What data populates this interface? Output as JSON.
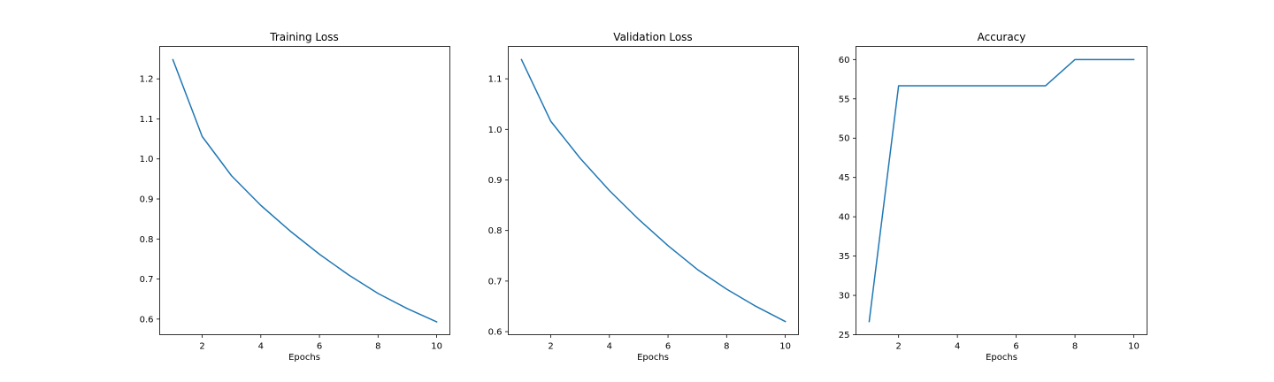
{
  "chart_data": [
    {
      "type": "line",
      "title": "Training Loss",
      "xlabel": "Epochs",
      "ylabel": "",
      "x": [
        1,
        2,
        3,
        4,
        5,
        6,
        7,
        8,
        9,
        10
      ],
      "series": [
        {
          "values": [
            1.248,
            1.056,
            0.958,
            0.884,
            0.82,
            0.762,
            0.71,
            0.664,
            0.626,
            0.593
          ]
        }
      ],
      "xlim": [
        0.55,
        10.45
      ],
      "ylim": [
        0.561,
        1.281
      ],
      "xticks": [
        2,
        4,
        6,
        8,
        10
      ],
      "yticks": [
        0.6,
        0.7,
        0.8,
        0.9,
        1.0,
        1.1,
        1.2
      ],
      "xtick_labels": [
        "2",
        "4",
        "6",
        "8",
        "10"
      ],
      "ytick_labels": [
        "0.6",
        "0.7",
        "0.8",
        "0.9",
        "1.0",
        "1.1",
        "1.2"
      ],
      "color": "#1f77b4",
      "grid": false
    },
    {
      "type": "line",
      "title": "Validation Loss",
      "xlabel": "Epochs",
      "ylabel": "",
      "x": [
        1,
        2,
        3,
        4,
        5,
        6,
        7,
        8,
        9,
        10
      ],
      "series": [
        {
          "values": [
            1.138,
            1.016,
            0.943,
            0.879,
            0.822,
            0.77,
            0.723,
            0.684,
            0.65,
            0.62
          ]
        }
      ],
      "xlim": [
        0.55,
        10.45
      ],
      "ylim": [
        0.594,
        1.164
      ],
      "xticks": [
        2,
        4,
        6,
        8,
        10
      ],
      "yticks": [
        0.6,
        0.7,
        0.8,
        0.9,
        1.0,
        1.1
      ],
      "xtick_labels": [
        "2",
        "4",
        "6",
        "8",
        "10"
      ],
      "ytick_labels": [
        "0.6",
        "0.7",
        "0.8",
        "0.9",
        "1.0",
        "1.1"
      ],
      "color": "#1f77b4",
      "grid": false
    },
    {
      "type": "line",
      "title": "Accuracy",
      "xlabel": "Epochs",
      "ylabel": "",
      "x": [
        1,
        2,
        3,
        4,
        5,
        6,
        7,
        8,
        9,
        10
      ],
      "series": [
        {
          "values": [
            26.67,
            56.67,
            56.67,
            56.67,
            56.67,
            56.67,
            56.67,
            60.0,
            60.0,
            60.0
          ]
        }
      ],
      "xlim": [
        0.55,
        10.45
      ],
      "ylim": [
        25.0,
        61.67
      ],
      "xticks": [
        2,
        4,
        6,
        8,
        10
      ],
      "yticks": [
        25,
        30,
        35,
        40,
        45,
        50,
        55,
        60
      ],
      "xtick_labels": [
        "2",
        "4",
        "6",
        "8",
        "10"
      ],
      "ytick_labels": [
        "25",
        "30",
        "35",
        "40",
        "45",
        "50",
        "55",
        "60"
      ],
      "color": "#1f77b4",
      "grid": false
    }
  ]
}
